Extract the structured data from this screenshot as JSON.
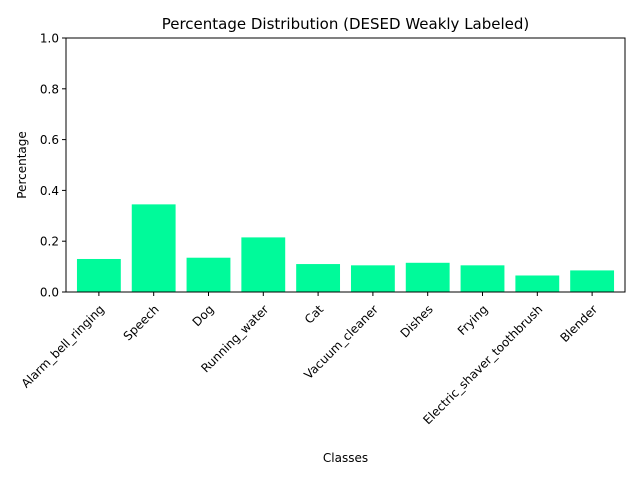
{
  "chart_data": {
    "type": "bar",
    "title": "Percentage Distribution (DESED Weakly Labeled)",
    "xlabel": "Classes",
    "ylabel": "Percentage",
    "categories": [
      "Alarm_bell_ringing",
      "Speech",
      "Dog",
      "Running_water",
      "Cat",
      "Vacuum_cleaner",
      "Dishes",
      "Frying",
      "Electric_shaver_toothbrush",
      "Blender"
    ],
    "values": [
      0.13,
      0.345,
      0.135,
      0.215,
      0.11,
      0.105,
      0.115,
      0.105,
      0.065,
      0.085
    ],
    "ylim": [
      0,
      1.0
    ],
    "yticks": [
      "0.0",
      "0.2",
      "0.4",
      "0.6",
      "0.8",
      "1.0"
    ],
    "bar_color": "#00fa9a",
    "grid": false,
    "legend": "none"
  }
}
